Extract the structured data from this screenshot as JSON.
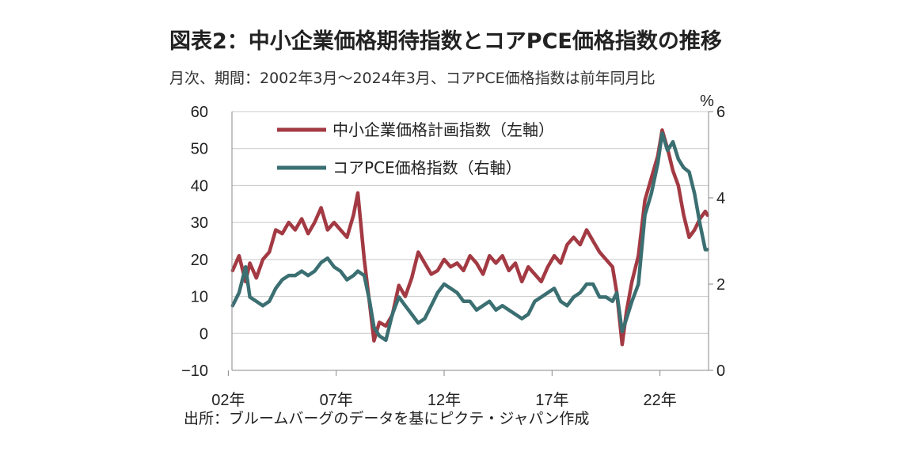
{
  "title": "図表2：中小企業価格期待指数とコアPCE価格指数の推移",
  "subtitle": "月次、期間：2002年3月～2024年3月、コアPCE価格指数は前年同月比",
  "source": "出所：ブルームバーグのデータを基にピクテ・ジャパン作成",
  "chart_data": {
    "type": "line",
    "title": "図表2：中小企業価格期待指数とコアPCE価格指数の推移",
    "subtitle": "月次、期間：2002年3月～2024年3月、コアPCE価格指数は前年同月比",
    "left_axis": {
      "ylim": [
        -10,
        60
      ],
      "ticks": [
        "60",
        "50",
        "40",
        "30",
        "20",
        "10",
        "0",
        "−10"
      ]
    },
    "right_axis": {
      "ylim": [
        0,
        6
      ],
      "unit": "%",
      "ticks": [
        "6",
        "4",
        "2",
        "0"
      ]
    },
    "x_tick_labels": [
      "02年",
      "07年",
      "12年",
      "17年",
      "22年"
    ],
    "x_tick_years": [
      2002,
      2007,
      2012,
      2017,
      2022
    ],
    "xlim": [
      2002.17,
      2024.25
    ],
    "grid": "horizontal",
    "legend_position": "top-left",
    "series": [
      {
        "name": "中小企業価格計画指数（左軸）",
        "axis": "left",
        "color": "#a33a43",
        "x": [
          2002.2,
          2002.5,
          2002.8,
          2003.0,
          2003.3,
          2003.6,
          2003.9,
          2004.2,
          2004.5,
          2004.8,
          2005.1,
          2005.4,
          2005.7,
          2006.0,
          2006.3,
          2006.6,
          2006.9,
          2007.2,
          2007.5,
          2007.8,
          2008.0,
          2008.3,
          2008.55,
          2008.75,
          2009.0,
          2009.3,
          2009.6,
          2009.9,
          2010.2,
          2010.5,
          2010.8,
          2011.1,
          2011.4,
          2011.7,
          2012.0,
          2012.3,
          2012.6,
          2012.9,
          2013.2,
          2013.5,
          2013.8,
          2014.1,
          2014.4,
          2014.7,
          2015.0,
          2015.3,
          2015.6,
          2015.9,
          2016.2,
          2016.5,
          2016.8,
          2017.1,
          2017.4,
          2017.7,
          2018.0,
          2018.3,
          2018.6,
          2018.9,
          2019.2,
          2019.5,
          2019.8,
          2020.0,
          2020.25,
          2020.45,
          2020.7,
          2021.0,
          2021.3,
          2021.6,
          2021.9,
          2022.1,
          2022.35,
          2022.6,
          2022.85,
          2023.1,
          2023.35,
          2023.6,
          2023.85,
          2024.1,
          2024.2
        ],
        "values": [
          17,
          21,
          14,
          19,
          15,
          20,
          22,
          28,
          27,
          30,
          28,
          31,
          27,
          30,
          34,
          28,
          30,
          28,
          26,
          32,
          38,
          20,
          8,
          -2,
          3,
          2,
          5,
          13,
          10,
          15,
          22,
          19,
          16,
          17,
          20,
          18,
          19,
          17,
          21,
          19,
          16,
          21,
          19,
          21,
          17,
          19,
          14,
          18,
          16,
          14,
          18,
          21,
          19,
          24,
          26,
          24,
          28,
          25,
          22,
          20,
          18,
          11,
          -3,
          6,
          14,
          21,
          36,
          42,
          48,
          55,
          50,
          44,
          40,
          32,
          26,
          28,
          31,
          33,
          32
        ]
      },
      {
        "name": "コアPCE価格指数（右軸）",
        "axis": "right",
        "color": "#3b6f72",
        "x": [
          2002.2,
          2002.5,
          2002.8,
          2003.0,
          2003.3,
          2003.6,
          2003.9,
          2004.2,
          2004.5,
          2004.8,
          2005.1,
          2005.4,
          2005.7,
          2006.0,
          2006.3,
          2006.6,
          2006.9,
          2007.2,
          2007.5,
          2007.8,
          2008.0,
          2008.3,
          2008.55,
          2008.75,
          2009.0,
          2009.3,
          2009.6,
          2009.9,
          2010.2,
          2010.5,
          2010.8,
          2011.1,
          2011.4,
          2011.7,
          2012.0,
          2012.3,
          2012.6,
          2012.9,
          2013.2,
          2013.5,
          2013.8,
          2014.1,
          2014.4,
          2014.7,
          2015.0,
          2015.3,
          2015.6,
          2015.9,
          2016.2,
          2016.5,
          2016.8,
          2017.1,
          2017.4,
          2017.7,
          2018.0,
          2018.3,
          2018.6,
          2018.9,
          2019.2,
          2019.5,
          2019.8,
          2020.0,
          2020.25,
          2020.45,
          2020.7,
          2021.0,
          2021.3,
          2021.6,
          2021.9,
          2022.1,
          2022.35,
          2022.6,
          2022.85,
          2023.1,
          2023.35,
          2023.6,
          2023.85,
          2024.1,
          2024.2
        ],
        "values": [
          1.5,
          1.8,
          2.4,
          1.7,
          1.6,
          1.5,
          1.6,
          1.9,
          2.1,
          2.2,
          2.2,
          2.3,
          2.2,
          2.3,
          2.5,
          2.6,
          2.4,
          2.3,
          2.1,
          2.2,
          2.3,
          2.2,
          1.6,
          1.0,
          0.8,
          0.7,
          1.3,
          1.7,
          1.5,
          1.3,
          1.1,
          1.2,
          1.5,
          1.8,
          2.0,
          1.9,
          1.8,
          1.6,
          1.6,
          1.4,
          1.5,
          1.6,
          1.4,
          1.5,
          1.4,
          1.3,
          1.2,
          1.3,
          1.6,
          1.7,
          1.8,
          1.9,
          1.6,
          1.5,
          1.7,
          1.8,
          2.0,
          2.0,
          1.7,
          1.7,
          1.6,
          1.8,
          0.9,
          1.2,
          1.6,
          2.0,
          3.6,
          4.1,
          4.8,
          5.5,
          5.1,
          5.3,
          4.9,
          4.7,
          4.6,
          4.1,
          3.4,
          2.8,
          2.8
        ]
      }
    ]
  }
}
